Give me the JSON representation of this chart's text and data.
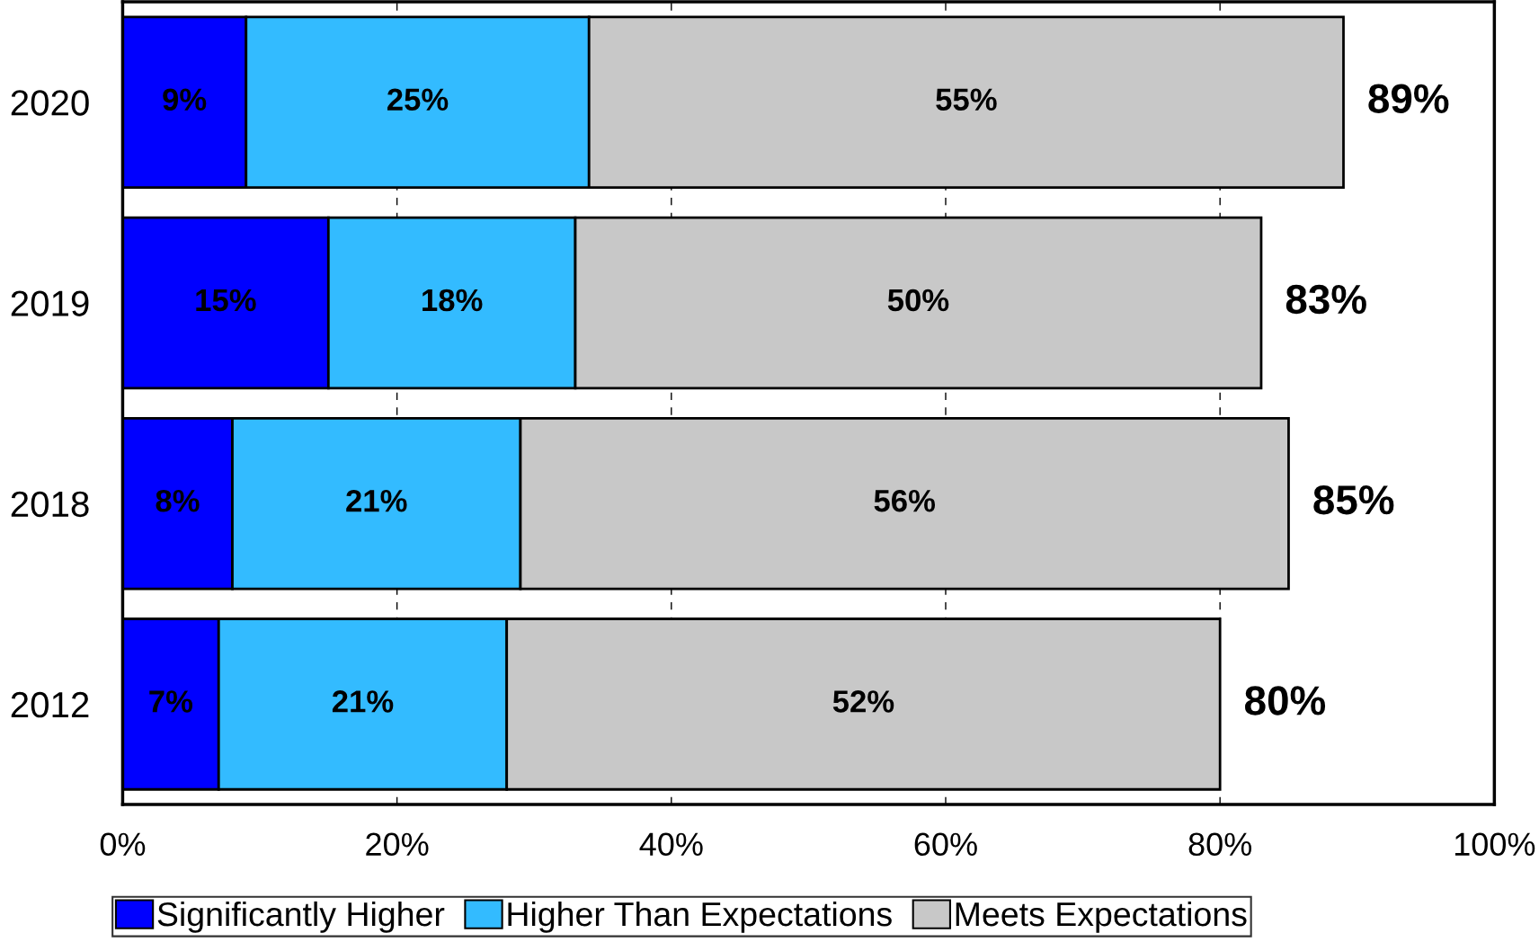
{
  "chart_data": {
    "type": "bar",
    "orientation": "horizontal",
    "stacked": true,
    "categories": [
      "2020",
      "2019",
      "2018",
      "2012"
    ],
    "series": [
      {
        "name": "Significantly Higher",
        "color": "#0000ff",
        "values": [
          9,
          15,
          8,
          7
        ],
        "value_labels": [
          "9%",
          "15%",
          "8%",
          "7%"
        ]
      },
      {
        "name": "Higher Than Expectations",
        "color": "#33bbff",
        "values": [
          25,
          18,
          21,
          21
        ],
        "value_labels": [
          "25%",
          "18%",
          "21%",
          "21%"
        ]
      },
      {
        "name": "Meets Expectations",
        "color": "#c8c8c8",
        "values": [
          55,
          50,
          56,
          52
        ],
        "value_labels": [
          "55%",
          "50%",
          "56%",
          "52%"
        ]
      }
    ],
    "totals": [
      "89%",
      "83%",
      "85%",
      "80%"
    ],
    "xlim": [
      0,
      100
    ],
    "xticks": [
      {
        "value": 0,
        "label": "0%"
      },
      {
        "value": 20,
        "label": "20%"
      },
      {
        "value": 40,
        "label": "40%"
      },
      {
        "value": 60,
        "label": "60%"
      },
      {
        "value": 80,
        "label": "80%"
      },
      {
        "value": 100,
        "label": "100%"
      }
    ],
    "grid": "x",
    "legend": "bottom"
  }
}
